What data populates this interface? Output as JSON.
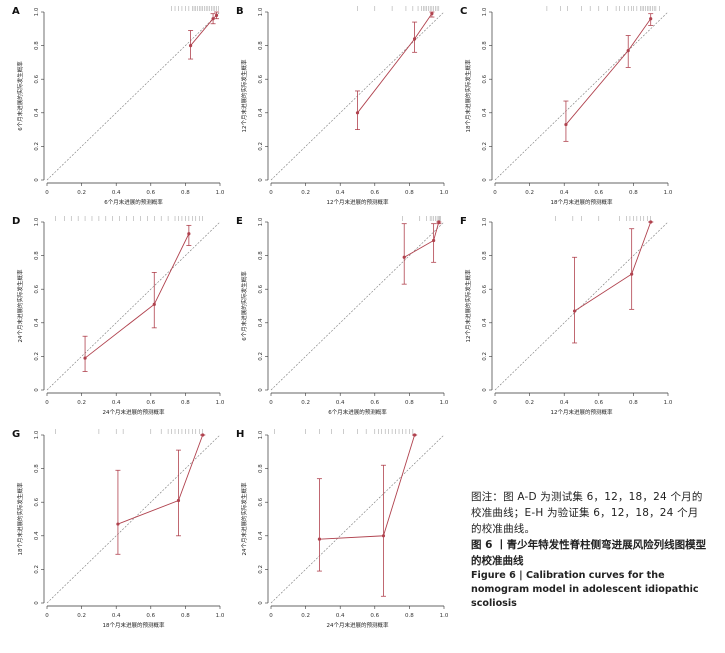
{
  "figure": {
    "note": "图注：图 A-D 为测试集 6，12，18，24 个月的校准曲线；E-H 为验证集 6，12，18，24 个月的校准曲线。",
    "title_zh": "图 6 丨青少年特发性脊柱侧弯进展风险列线图模型的校准曲线",
    "title_en": "Figure 6 | Calibration curves for the nomogram model in adolescent idiopathic scoliosis"
  },
  "colors": {
    "line": "#b0424e",
    "diagonal": "#7a7a7a",
    "axis": "#333333",
    "rug": "#9a9a9a"
  },
  "chart_data": [
    {
      "panel": "A",
      "type": "line",
      "xlabel": "6个月末进展的预测概率",
      "ylabel": "6个月末进展的实际发生概率",
      "xlim": [
        0,
        1
      ],
      "ylim": [
        0,
        1
      ],
      "xticks": [
        "0",
        "0.2",
        "0.4",
        "0.6",
        "0.8",
        "1.0"
      ],
      "yticks": [
        "0",
        "0.2",
        "0.4",
        "0.6",
        "0.8",
        "1.0"
      ],
      "points": [
        {
          "x": 0.83,
          "y": 0.8,
          "lo": 0.72,
          "hi": 0.89
        },
        {
          "x": 0.96,
          "y": 0.96,
          "lo": 0.93,
          "hi": 0.99
        },
        {
          "x": 0.98,
          "y": 0.98,
          "lo": 0.96,
          "hi": 1.0
        }
      ],
      "rug": [
        0.72,
        0.74,
        0.76,
        0.78,
        0.8,
        0.82,
        0.84,
        0.85,
        0.86,
        0.87,
        0.88,
        0.89,
        0.9,
        0.91,
        0.92,
        0.93,
        0.94,
        0.95,
        0.96,
        0.97,
        0.98,
        0.99
      ]
    },
    {
      "panel": "B",
      "type": "line",
      "xlabel": "12个月末进展的预测概率",
      "ylabel": "12个月末进展的实际发生概率",
      "xlim": [
        0,
        1
      ],
      "ylim": [
        0,
        1
      ],
      "xticks": [
        "0",
        "0.2",
        "0.4",
        "0.6",
        "0.8",
        "1.0"
      ],
      "yticks": [
        "0",
        "0.2",
        "0.4",
        "0.6",
        "0.8",
        "1.0"
      ],
      "points": [
        {
          "x": 0.5,
          "y": 0.4,
          "lo": 0.3,
          "hi": 0.53
        },
        {
          "x": 0.83,
          "y": 0.84,
          "lo": 0.76,
          "hi": 0.94
        },
        {
          "x": 0.93,
          "y": 0.99,
          "lo": 0.97,
          "hi": 1.0
        }
      ],
      "rug": [
        0.5,
        0.6,
        0.7,
        0.78,
        0.82,
        0.85,
        0.87,
        0.88,
        0.89,
        0.9,
        0.91,
        0.92,
        0.93,
        0.94,
        0.95,
        0.96,
        0.97
      ]
    },
    {
      "panel": "C",
      "type": "line",
      "xlabel": "18个月末进展的预测概率",
      "ylabel": "18个月末进展的实际发生概率",
      "xlim": [
        0,
        1
      ],
      "ylim": [
        0,
        1
      ],
      "xticks": [
        "0",
        "0.2",
        "0.4",
        "0.6",
        "0.8",
        "1.0"
      ],
      "yticks": [
        "0",
        "0.2",
        "0.4",
        "0.6",
        "0.8",
        "1.0"
      ],
      "points": [
        {
          "x": 0.41,
          "y": 0.33,
          "lo": 0.23,
          "hi": 0.47
        },
        {
          "x": 0.77,
          "y": 0.77,
          "lo": 0.67,
          "hi": 0.86
        },
        {
          "x": 0.9,
          "y": 0.96,
          "lo": 0.92,
          "hi": 0.99
        }
      ],
      "rug": [
        0.3,
        0.38,
        0.42,
        0.5,
        0.55,
        0.6,
        0.65,
        0.7,
        0.72,
        0.75,
        0.77,
        0.79,
        0.8,
        0.82,
        0.84,
        0.85,
        0.86,
        0.87,
        0.88,
        0.89,
        0.9,
        0.91,
        0.92,
        0.93,
        0.95
      ]
    },
    {
      "panel": "D",
      "type": "line",
      "xlabel": "24个月末进展的预测概率",
      "ylabel": "24个月末进展的实际发生概率",
      "xlim": [
        0,
        1
      ],
      "ylim": [
        0,
        1
      ],
      "xticks": [
        "0",
        "0.2",
        "0.4",
        "0.6",
        "0.8",
        "1.0"
      ],
      "yticks": [
        "0",
        "0.2",
        "0.4",
        "0.6",
        "0.8",
        "1.0"
      ],
      "points": [
        {
          "x": 0.22,
          "y": 0.19,
          "lo": 0.11,
          "hi": 0.32
        },
        {
          "x": 0.62,
          "y": 0.51,
          "lo": 0.37,
          "hi": 0.7
        },
        {
          "x": 0.82,
          "y": 0.93,
          "lo": 0.86,
          "hi": 0.98
        }
      ],
      "rug": [
        0.05,
        0.1,
        0.14,
        0.18,
        0.22,
        0.26,
        0.3,
        0.34,
        0.38,
        0.42,
        0.46,
        0.5,
        0.54,
        0.58,
        0.62,
        0.66,
        0.7,
        0.74,
        0.76,
        0.78,
        0.8,
        0.82,
        0.84,
        0.86,
        0.88,
        0.9
      ]
    },
    {
      "panel": "E",
      "type": "line",
      "xlabel": "6个月末进展的预测概率",
      "ylabel": "6个月末进展的实际发生概率",
      "xlim": [
        0,
        1
      ],
      "ylim": [
        0,
        1
      ],
      "xticks": [
        "0",
        "0.2",
        "0.4",
        "0.6",
        "0.8",
        "1.0"
      ],
      "yticks": [
        "0",
        "0.2",
        "0.4",
        "0.6",
        "0.8",
        "1.0"
      ],
      "points": [
        {
          "x": 0.77,
          "y": 0.79,
          "lo": 0.63,
          "hi": 0.99
        },
        {
          "x": 0.94,
          "y": 0.89,
          "lo": 0.76,
          "hi": 0.99
        },
        {
          "x": 0.97,
          "y": 1.0,
          "lo": 0.99,
          "hi": 1.0
        }
      ],
      "rug": [
        0.76,
        0.86,
        0.9,
        0.92,
        0.93,
        0.94,
        0.95,
        0.96,
        0.97,
        0.975,
        0.98
      ]
    },
    {
      "panel": "F",
      "type": "line",
      "xlabel": "12个月末进展的预测概率",
      "ylabel": "12个月末进展的实际发生概率",
      "xlim": [
        0,
        1
      ],
      "ylim": [
        0,
        1
      ],
      "xticks": [
        "0",
        "0.2",
        "0.4",
        "0.6",
        "0.8",
        "1.0"
      ],
      "yticks": [
        "0",
        "0.2",
        "0.4",
        "0.6",
        "0.8",
        "1.0"
      ],
      "points": [
        {
          "x": 0.46,
          "y": 0.47,
          "lo": 0.28,
          "hi": 0.79
        },
        {
          "x": 0.79,
          "y": 0.69,
          "lo": 0.48,
          "hi": 0.96
        },
        {
          "x": 0.9,
          "y": 1.0,
          "lo": 1.0,
          "hi": 1.0
        }
      ],
      "rug": [
        0.35,
        0.45,
        0.5,
        0.6,
        0.72,
        0.76,
        0.78,
        0.8,
        0.82,
        0.84,
        0.86,
        0.88,
        0.9
      ]
    },
    {
      "panel": "G",
      "type": "line",
      "xlabel": "18个月末进展的预测概率",
      "ylabel": "18个月末进展的实际发生概率",
      "xlim": [
        0,
        1
      ],
      "ylim": [
        0,
        1
      ],
      "xticks": [
        "0",
        "0.2",
        "0.4",
        "0.6",
        "0.8",
        "1.0"
      ],
      "yticks": [
        "0",
        "0.2",
        "0.4",
        "0.6",
        "0.8",
        "1.0"
      ],
      "points": [
        {
          "x": 0.41,
          "y": 0.47,
          "lo": 0.29,
          "hi": 0.79
        },
        {
          "x": 0.76,
          "y": 0.61,
          "lo": 0.4,
          "hi": 0.91
        },
        {
          "x": 0.9,
          "y": 1.0,
          "lo": 1.0,
          "hi": 1.0
        }
      ],
      "rug": [
        0.05,
        0.3,
        0.4,
        0.44,
        0.6,
        0.66,
        0.7,
        0.72,
        0.74,
        0.76,
        0.78,
        0.8,
        0.82,
        0.84,
        0.86,
        0.88,
        0.9
      ]
    },
    {
      "panel": "H",
      "type": "line",
      "xlabel": "24个月末进展的预测概率",
      "ylabel": "24个月末进展的实际发生概率",
      "xlim": [
        0,
        1
      ],
      "ylim": [
        0,
        1
      ],
      "xticks": [
        "0",
        "0.2",
        "0.4",
        "0.6",
        "0.8",
        "1.0"
      ],
      "yticks": [
        "0",
        "0.2",
        "0.4",
        "0.6",
        "0.8",
        "1.0"
      ],
      "points": [
        {
          "x": 0.28,
          "y": 0.38,
          "lo": 0.19,
          "hi": 0.74
        },
        {
          "x": 0.65,
          "y": 0.4,
          "lo": 0.04,
          "hi": 0.82
        },
        {
          "x": 0.83,
          "y": 1.0,
          "lo": 1.0,
          "hi": 1.0
        }
      ],
      "rug": [
        0.02,
        0.2,
        0.28,
        0.35,
        0.42,
        0.5,
        0.55,
        0.6,
        0.62,
        0.64,
        0.66,
        0.68,
        0.7,
        0.72,
        0.74,
        0.76,
        0.78,
        0.8,
        0.82
      ]
    }
  ]
}
